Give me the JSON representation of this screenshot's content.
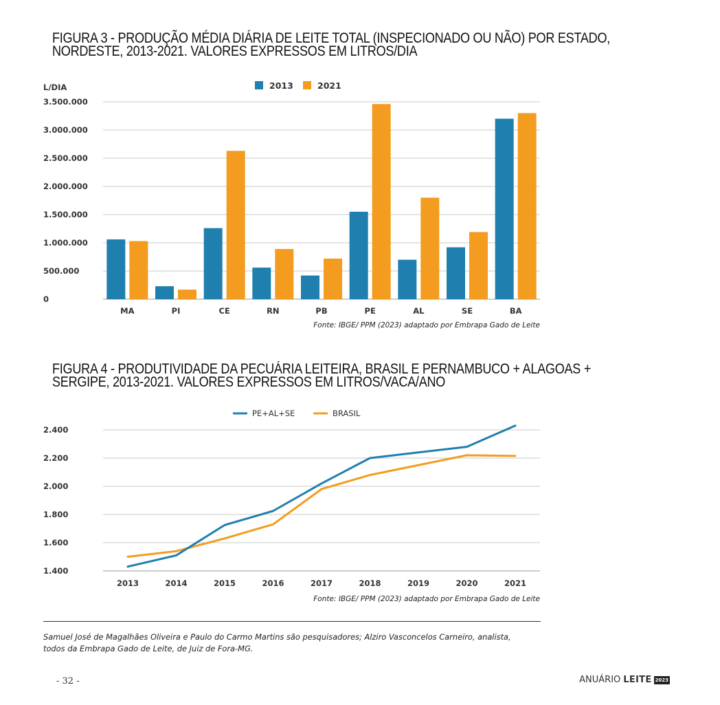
{
  "figures": {
    "fig3": {
      "title_line1": "FIGURA 3 - PRODUÇÃO MÉDIA DIÁRIA DE LEITE TOTAL (INSPECIONADO OU NÃO) POR ESTADO,",
      "title_line2": "NORDESTE, 2013-2021. VALORES EXPRESSOS EM LITROS/DIA",
      "source": "Fonte: IBGE/ PPM (2023) adaptado por Embrapa Gado de Leite"
    },
    "fig4": {
      "title_line1": "FIGURA 4 - PRODUTIVIDADE DA PECUÁRIA LEITEIRA, BRASIL E PERNAMBUCO + ALAGOAS +",
      "title_line2": "SERGIPE, 2013-2021. VALORES EXPRESSOS EM LITROS/VACA/ANO",
      "source": "Fonte: IBGE/ PPM (2023) adaptado por Embrapa Gado de Leite"
    }
  },
  "footer": {
    "authors_line1": "Samuel José de Magalhães Oliveira e Paulo do Carmo Martins são pesquisadores;  Alziro Vasconcelos Carneiro, analista,",
    "authors_line2": "todos da Embrapa Gado de Leite, de Juiz de Fora-MG.",
    "page_number": "- 32 -",
    "brand_prefix": "ANUÁRIO",
    "brand_name": "LEITE",
    "brand_year": "2023"
  },
  "chart_data": [
    {
      "type": "bar",
      "ylabel": "L/DIA",
      "categories": [
        "MA",
        "PI",
        "CE",
        "RN",
        "PB",
        "PE",
        "AL",
        "SE",
        "BA"
      ],
      "series": [
        {
          "name": "2013",
          "color": "#1f7fae",
          "values": [
            1060000,
            230000,
            1260000,
            560000,
            420000,
            1550000,
            700000,
            920000,
            3200000
          ]
        },
        {
          "name": "2021",
          "color": "#f39c1f",
          "values": [
            1030000,
            170000,
            2630000,
            890000,
            720000,
            3460000,
            1800000,
            1190000,
            3300000
          ]
        }
      ],
      "ylim": [
        0,
        3500000
      ],
      "yticks": [
        0,
        500000,
        1000000,
        1500000,
        2000000,
        2500000,
        3000000,
        3500000
      ],
      "ytick_labels": [
        "0",
        "500.000",
        "1.000.000",
        "1.500.000",
        "2.000.000",
        "2.500.000",
        "3.000.000",
        "3.500.000"
      ],
      "legend_position": "top-center",
      "grid": true
    },
    {
      "type": "line",
      "x": [
        "2013",
        "2014",
        "2015",
        "2016",
        "2017",
        "2018",
        "2019",
        "2020",
        "2021"
      ],
      "series": [
        {
          "name": "PE+AL+SE",
          "color": "#1f7fae",
          "values": [
            1430,
            1510,
            1725,
            1825,
            2020,
            2200,
            2240,
            2280,
            2430
          ]
        },
        {
          "name": "BRASIL",
          "color": "#f39c1f",
          "values": [
            1500,
            1540,
            1630,
            1730,
            1980,
            2080,
            2150,
            2220,
            2215
          ]
        }
      ],
      "ylim": [
        1400,
        2400
      ],
      "yticks": [
        1400,
        1600,
        1800,
        2000,
        2200,
        2400
      ],
      "ytick_labels": [
        "1.400",
        "1.600",
        "1.800",
        "2.000",
        "2.200",
        "2.400"
      ],
      "legend_position": "top-center",
      "grid": true
    }
  ]
}
